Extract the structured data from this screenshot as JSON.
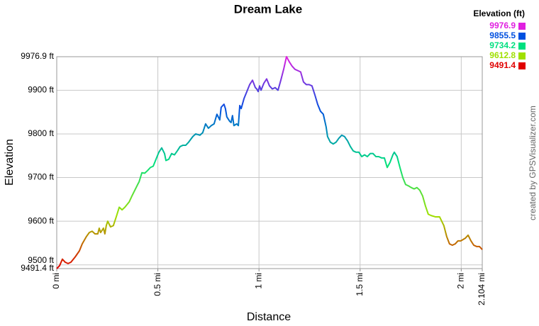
{
  "chart_data": {
    "type": "line",
    "title": "Dream Lake",
    "x_label": "Distance",
    "y_label": "Elevation",
    "credit": "created by GPSVisualizer.com",
    "legend": {
      "title": "Elevation (ft)",
      "items": [
        {
          "value": 9976.9,
          "color": "#e020e0"
        },
        {
          "value": 9855.5,
          "color": "#0050e0"
        },
        {
          "value": 9734.2,
          "color": "#00e080"
        },
        {
          "value": 9612.8,
          "color": "#a0e000"
        },
        {
          "value": 9491.4,
          "color": "#e00000"
        }
      ]
    },
    "x": [
      0,
      0.014,
      0.028,
      0.042,
      0.056,
      0.07,
      0.091,
      0.112,
      0.126,
      0.147,
      0.161,
      0.175,
      0.189,
      0.203,
      0.21,
      0.217,
      0.231,
      0.238,
      0.245,
      0.252,
      0.266,
      0.28,
      0.295,
      0.309,
      0.323,
      0.337,
      0.358,
      0.372,
      0.386,
      0.4,
      0.407,
      0.421,
      0.435,
      0.449,
      0.463,
      0.477,
      0.491,
      0.505,
      0.519,
      0.533,
      0.54,
      0.554,
      0.568,
      0.582,
      0.596,
      0.61,
      0.624,
      0.638,
      0.652,
      0.673,
      0.687,
      0.708,
      0.722,
      0.736,
      0.75,
      0.764,
      0.778,
      0.792,
      0.806,
      0.813,
      0.827,
      0.834,
      0.841,
      0.855,
      0.862,
      0.869,
      0.876,
      0.89,
      0.898,
      0.905,
      0.912,
      0.926,
      0.94,
      0.954,
      0.968,
      0.982,
      0.989,
      0.996,
      1.003,
      1.01,
      1.024,
      1.038,
      1.052,
      1.066,
      1.08,
      1.094,
      1.108,
      1.122,
      1.136,
      1.15,
      1.164,
      1.178,
      1.192,
      1.206,
      1.22,
      1.234,
      1.248,
      1.262,
      1.276,
      1.29,
      1.304,
      1.318,
      1.332,
      1.339,
      1.353,
      1.367,
      1.381,
      1.395,
      1.409,
      1.423,
      1.438,
      1.452,
      1.466,
      1.48,
      1.494,
      1.508,
      1.522,
      1.536,
      1.55,
      1.564,
      1.578,
      1.592,
      1.606,
      1.62,
      1.634,
      1.648,
      1.662,
      1.669,
      1.683,
      1.697,
      1.711,
      1.725,
      1.739,
      1.753,
      1.767,
      1.781,
      1.795,
      1.809,
      1.823,
      1.837,
      1.851,
      1.872,
      1.893,
      1.914,
      1.928,
      1.942,
      1.956,
      1.97,
      1.984,
      1.998,
      2.02,
      2.034,
      2.048,
      2.062,
      2.076,
      2.09,
      2.104
    ],
    "values": [
      9491.4,
      9498,
      9513,
      9506,
      9503,
      9506,
      9518,
      9532,
      9548,
      9565,
      9574,
      9577,
      9571,
      9571,
      9584,
      9574,
      9584,
      9571,
      9590,
      9600,
      9587,
      9590,
      9611,
      9632,
      9626,
      9632,
      9644,
      9658,
      9671,
      9684,
      9690,
      9711,
      9710,
      9716,
      9723,
      9726,
      9742,
      9758,
      9768,
      9755,
      9739,
      9742,
      9755,
      9752,
      9761,
      9771,
      9774,
      9774,
      9781,
      9794,
      9800,
      9797,
      9803,
      9823,
      9813,
      9819,
      9823,
      9845,
      9832,
      9861,
      9868,
      9858,
      9839,
      9829,
      9826,
      9842,
      9819,
      9823,
      9819,
      9865,
      9858,
      9881,
      9897,
      9913,
      9923,
      9906,
      9903,
      9897,
      9910,
      9900,
      9916,
      9926,
      9910,
      9903,
      9906,
      9900,
      9923,
      9948,
      9976.9,
      9965,
      9955,
      9948,
      9945,
      9942,
      9919,
      9913,
      9913,
      9910,
      9890,
      9868,
      9852,
      9845,
      9816,
      9794,
      9781,
      9777,
      9781,
      9790,
      9797,
      9794,
      9784,
      9771,
      9761,
      9758,
      9758,
      9748,
      9752,
      9748,
      9755,
      9755,
      9748,
      9748,
      9745,
      9745,
      9723,
      9735,
      9752,
      9758,
      9748,
      9723,
      9700,
      9684,
      9681,
      9677,
      9674,
      9677,
      9671,
      9658,
      9635,
      9616,
      9613,
      9610,
      9610,
      9590,
      9565,
      9548,
      9545,
      9548,
      9555,
      9555,
      9561,
      9568,
      9555,
      9545,
      9542,
      9542,
      9535
    ],
    "xlim": [
      0,
      2.104
    ],
    "xticks": [
      {
        "value": 0,
        "label": "0 mi"
      },
      {
        "value": 0.5,
        "label": "0.5 mi"
      },
      {
        "value": 1,
        "label": "1 mi"
      },
      {
        "value": 1.5,
        "label": "1.5 mi"
      },
      {
        "value": 2,
        "label": "2 mi"
      },
      {
        "value": 2.104,
        "label": "2.104 mi"
      }
    ],
    "ylim": [
      9491.4,
      9976.9
    ],
    "yticks": [
      {
        "value": 9491.4,
        "label": "9491.4 ft"
      },
      {
        "value": 9500,
        "label": "9500 ft"
      },
      {
        "value": 9600,
        "label": "9600 ft"
      },
      {
        "value": 9700,
        "label": "9700 ft"
      },
      {
        "value": 9800,
        "label": "9800 ft"
      },
      {
        "value": 9900,
        "label": "9900 ft"
      },
      {
        "value": 9976.9,
        "label": "9976.9 ft"
      }
    ],
    "grid": true
  }
}
